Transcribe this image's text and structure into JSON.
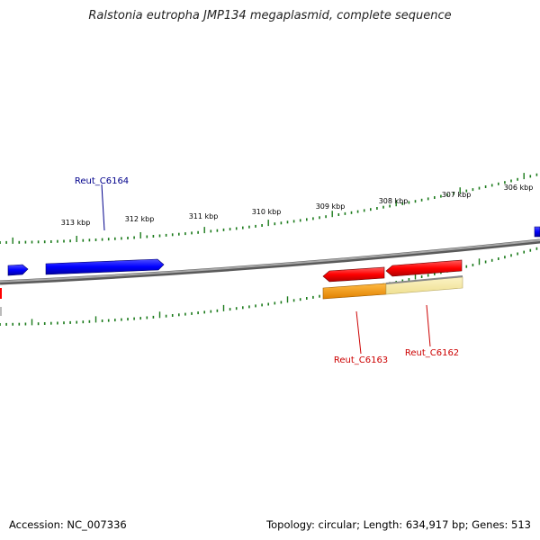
{
  "title": "Ralstonia eutropha JMP134 megaplasmid, complete sequence",
  "footer": {
    "accession": "Accession: NC_007336",
    "summary": "Topology: circular; Length: 634,917 bp; Genes: 513"
  },
  "scale_labels": [
    "313 kbp",
    "312 kbp",
    "311 kbp",
    "310 kbp",
    "309 kbp",
    "308 kbp",
    "307 kbp",
    "306 kbp"
  ],
  "genes": {
    "forward_label": "Reut_C6164",
    "reverse_labels": [
      "Reut_C6163",
      "Reut_C6162"
    ]
  },
  "colors": {
    "forward_gene": "#0000ff",
    "reverse_gene": "#ff0000",
    "backbone": "#888888",
    "ticks": "#1a7a1a",
    "forward_label": "#00008b",
    "reverse_label": "#cc0000",
    "orange_bar": "#ff9900",
    "pale_bar": "#f5e8a0"
  }
}
